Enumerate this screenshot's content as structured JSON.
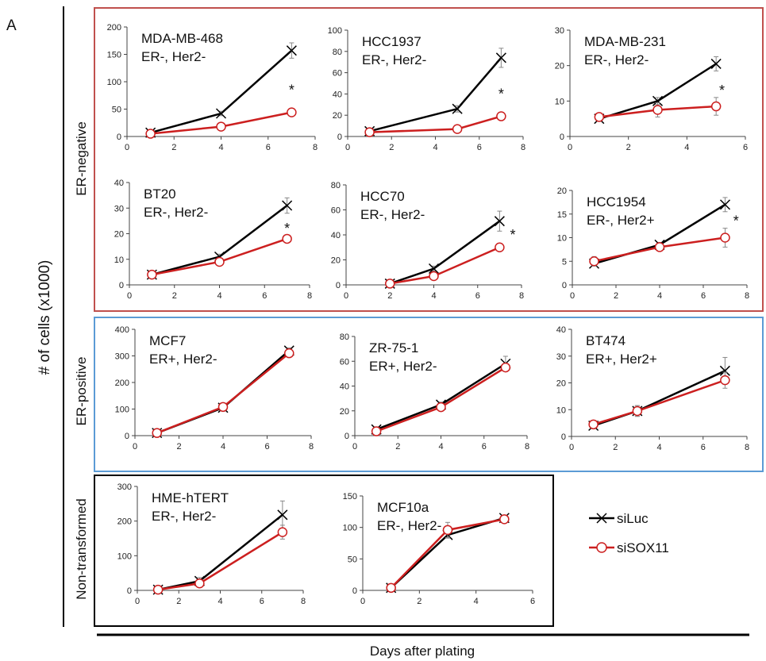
{
  "figure": {
    "panel_label": "A",
    "ylabel": "# of cells (x1000)",
    "xlabel": "Days after plating",
    "groups": [
      "ER-negative",
      "ER-positive",
      "Non-transformed"
    ],
    "significance_mark": "*",
    "colors": {
      "siLuc": "#000000",
      "siSOX11": "#cc1f1f",
      "er_negative_box": "#c0504d",
      "er_positive_box": "#5b9bd5",
      "non_transformed_box": "#000000"
    }
  },
  "legend": {
    "items": [
      {
        "label": "siLuc",
        "marker": "x",
        "color": "#000000"
      },
      {
        "label": "siSOX11",
        "marker": "circle",
        "color": "#cc1f1f"
      }
    ]
  },
  "chart_data": [
    {
      "type": "line",
      "title": "MDA-MB-468",
      "subtitle": "ER-, Her2-",
      "group": "ER-negative",
      "xlim": [
        0,
        8
      ],
      "ylim": [
        0,
        200
      ],
      "xticks": [
        0,
        2,
        4,
        6,
        8
      ],
      "yticks": [
        0,
        50,
        100,
        150,
        200
      ],
      "series": [
        {
          "name": "siLuc",
          "x": [
            1,
            4,
            7
          ],
          "y": [
            7,
            42,
            157
          ],
          "err": [
            3,
            4,
            14
          ]
        },
        {
          "name": "siSOX11",
          "x": [
            1,
            4,
            7
          ],
          "y": [
            5,
            18,
            44
          ],
          "err": [
            2,
            3,
            4
          ]
        }
      ],
      "annotations": [
        {
          "text": "*",
          "x": 7,
          "y": 85
        }
      ]
    },
    {
      "type": "line",
      "title": "HCC1937",
      "subtitle": "ER-, Her2-",
      "group": "ER-negative",
      "xlim": [
        0,
        8
      ],
      "ylim": [
        0,
        100
      ],
      "xticks": [
        0,
        2,
        4,
        6,
        8
      ],
      "yticks": [
        0,
        20,
        40,
        60,
        80,
        100
      ],
      "series": [
        {
          "name": "siLuc",
          "x": [
            1,
            5,
            7
          ],
          "y": [
            5,
            26,
            74
          ],
          "err": [
            2,
            3,
            9
          ]
        },
        {
          "name": "siSOX11",
          "x": [
            1,
            5,
            7
          ],
          "y": [
            4,
            7,
            19
          ],
          "err": [
            2,
            2,
            3
          ]
        }
      ],
      "annotations": [
        {
          "text": "*",
          "x": 7,
          "y": 40
        }
      ]
    },
    {
      "type": "line",
      "title": "MDA-MB-231",
      "subtitle": "ER-, Her2-",
      "group": "ER-negative",
      "xlim": [
        0,
        6
      ],
      "ylim": [
        0,
        30
      ],
      "xticks": [
        0,
        2,
        4,
        6
      ],
      "yticks": [
        0,
        10,
        20,
        30
      ],
      "series": [
        {
          "name": "siLuc",
          "x": [
            1,
            3,
            5
          ],
          "y": [
            5,
            10,
            20.5
          ],
          "err": [
            0.5,
            1,
            2
          ]
        },
        {
          "name": "siSOX11",
          "x": [
            1,
            3,
            5
          ],
          "y": [
            5.5,
            7.5,
            8.5
          ],
          "err": [
            1,
            2,
            2.5
          ]
        }
      ],
      "annotations": [
        {
          "text": "*",
          "x": 5.2,
          "y": 13
        }
      ]
    },
    {
      "type": "line",
      "title": "BT20",
      "subtitle": "ER-, Her2-",
      "group": "ER-negative",
      "xlim": [
        0,
        8
      ],
      "ylim": [
        0,
        40
      ],
      "xticks": [
        0,
        2,
        4,
        6,
        8
      ],
      "yticks": [
        0,
        10,
        20,
        30,
        40
      ],
      "series": [
        {
          "name": "siLuc",
          "x": [
            1,
            4,
            7
          ],
          "y": [
            4,
            11,
            31
          ],
          "err": [
            1,
            1,
            3
          ]
        },
        {
          "name": "siSOX11",
          "x": [
            1,
            4,
            7
          ],
          "y": [
            4,
            9,
            18
          ],
          "err": [
            1,
            1,
            1
          ]
        }
      ],
      "annotations": [
        {
          "text": "*",
          "x": 7,
          "y": 22
        }
      ]
    },
    {
      "type": "line",
      "title": "HCC70",
      "subtitle": "ER-, Her2-",
      "group": "ER-negative",
      "xlim": [
        0,
        8
      ],
      "ylim": [
        0,
        80
      ],
      "xticks": [
        0,
        2,
        4,
        6,
        8
      ],
      "yticks": [
        0,
        20,
        40,
        60,
        80
      ],
      "series": [
        {
          "name": "siLuc",
          "x": [
            2,
            4,
            7
          ],
          "y": [
            1,
            13,
            51
          ],
          "err": [
            1,
            2,
            8
          ]
        },
        {
          "name": "siSOX11",
          "x": [
            2,
            4,
            7
          ],
          "y": [
            1,
            7,
            30
          ],
          "err": [
            1,
            1,
            2
          ]
        }
      ],
      "annotations": [
        {
          "text": "*",
          "x": 7.6,
          "y": 40
        }
      ]
    },
    {
      "type": "line",
      "title": "HCC1954",
      "subtitle": "ER-, Her2+",
      "group": "ER-negative",
      "xlim": [
        0,
        8
      ],
      "ylim": [
        0,
        20
      ],
      "xticks": [
        0,
        2,
        4,
        6,
        8
      ],
      "yticks": [
        0,
        5,
        10,
        15,
        20
      ],
      "series": [
        {
          "name": "siLuc",
          "x": [
            1,
            4,
            7
          ],
          "y": [
            4.5,
            8.5,
            17
          ],
          "err": [
            0.5,
            0.5,
            1.5
          ]
        },
        {
          "name": "siSOX11",
          "x": [
            1,
            4,
            7
          ],
          "y": [
            5,
            8,
            10
          ],
          "err": [
            1,
            0.5,
            2
          ]
        }
      ],
      "annotations": [
        {
          "text": "*",
          "x": 7.5,
          "y": 13.5
        }
      ]
    },
    {
      "type": "line",
      "title": "MCF7",
      "subtitle": "ER+, Her2-",
      "group": "ER-positive",
      "xlim": [
        0,
        8
      ],
      "ylim": [
        0,
        400
      ],
      "xticks": [
        0,
        2,
        4,
        6,
        8
      ],
      "yticks": [
        0,
        100,
        200,
        300,
        400
      ],
      "series": [
        {
          "name": "siLuc",
          "x": [
            1,
            4,
            7
          ],
          "y": [
            10,
            105,
            320
          ],
          "err": [
            5,
            8,
            10
          ]
        },
        {
          "name": "siSOX11",
          "x": [
            1,
            4,
            7
          ],
          "y": [
            10,
            108,
            310
          ],
          "err": [
            5,
            8,
            10
          ]
        }
      ],
      "annotations": []
    },
    {
      "type": "line",
      "title": "ZR-75-1",
      "subtitle": "ER+, Her2-",
      "group": "ER-positive",
      "xlim": [
        0,
        8
      ],
      "ylim": [
        0,
        80
      ],
      "xticks": [
        0,
        2,
        4,
        6,
        8
      ],
      "yticks": [
        0,
        20,
        40,
        60,
        80
      ],
      "series": [
        {
          "name": "siLuc",
          "x": [
            1,
            4,
            7
          ],
          "y": [
            5,
            25,
            58
          ],
          "err": [
            2,
            2,
            6
          ]
        },
        {
          "name": "siSOX11",
          "x": [
            1,
            4,
            7
          ],
          "y": [
            3.5,
            23,
            55
          ],
          "err": [
            1,
            2,
            3
          ]
        }
      ],
      "annotations": []
    },
    {
      "type": "line",
      "title": "BT474",
      "subtitle": "ER+, Her2+",
      "group": "ER-positive",
      "xlim": [
        0,
        8
      ],
      "ylim": [
        0,
        40
      ],
      "xticks": [
        0,
        2,
        4,
        6,
        8
      ],
      "yticks": [
        0,
        10,
        20,
        30,
        40
      ],
      "series": [
        {
          "name": "siLuc",
          "x": [
            1,
            3,
            7
          ],
          "y": [
            4,
            9.5,
            24.5
          ],
          "err": [
            0.5,
            2,
            5
          ]
        },
        {
          "name": "siSOX11",
          "x": [
            1,
            3,
            7
          ],
          "y": [
            4.5,
            9.5,
            21
          ],
          "err": [
            0.5,
            2,
            3
          ]
        }
      ],
      "annotations": []
    },
    {
      "type": "line",
      "title": "HME-hTERT",
      "subtitle": "ER-, Her2-",
      "group": "Non-transformed",
      "xlim": [
        0,
        8
      ],
      "ylim": [
        0,
        300
      ],
      "xticks": [
        0,
        2,
        4,
        6,
        8
      ],
      "yticks": [
        0,
        100,
        200,
        300
      ],
      "series": [
        {
          "name": "siLuc",
          "x": [
            1,
            3,
            7
          ],
          "y": [
            2,
            27,
            218
          ],
          "err": [
            3,
            10,
            40
          ]
        },
        {
          "name": "siSOX11",
          "x": [
            1,
            3,
            7
          ],
          "y": [
            2,
            20,
            168
          ],
          "err": [
            3,
            8,
            20
          ]
        }
      ],
      "annotations": []
    },
    {
      "type": "line",
      "title": "MCF10a",
      "subtitle": "ER-, Her2-",
      "group": "Non-transformed",
      "xlim": [
        0,
        6
      ],
      "ylim": [
        0,
        150
      ],
      "xticks": [
        0,
        2,
        4,
        6
      ],
      "yticks": [
        0,
        50,
        100,
        150
      ],
      "series": [
        {
          "name": "siLuc",
          "x": [
            1,
            3,
            5
          ],
          "y": [
            4,
            88,
            115
          ],
          "err": [
            2,
            5,
            4
          ]
        },
        {
          "name": "siSOX11",
          "x": [
            1,
            3,
            5
          ],
          "y": [
            4,
            96,
            113
          ],
          "err": [
            2,
            12,
            5
          ]
        }
      ],
      "annotations": []
    }
  ]
}
